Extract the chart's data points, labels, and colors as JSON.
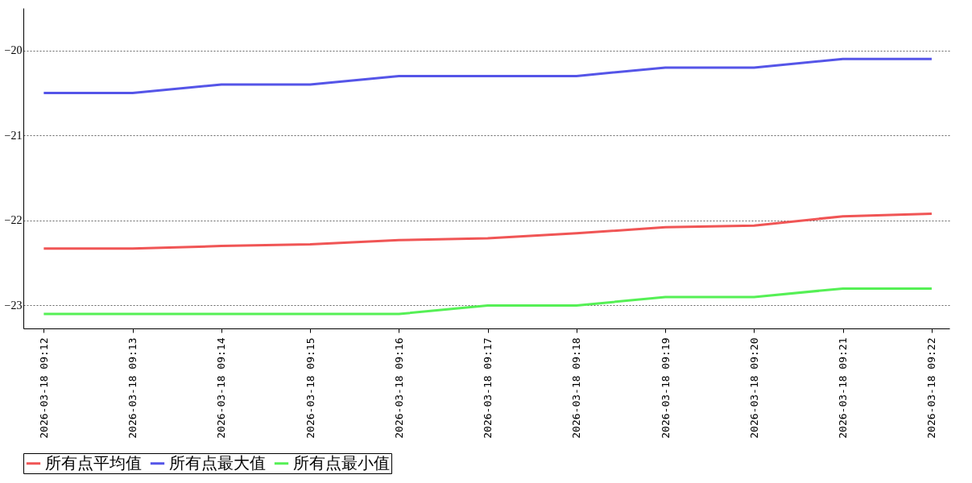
{
  "chart_data": {
    "type": "line",
    "categories": [
      "2026-03-18 09:12",
      "2026-03-18 09:13",
      "2026-03-18 09:14",
      "2026-03-18 09:15",
      "2026-03-18 09:16",
      "2026-03-18 09:17",
      "2026-03-18 09:18",
      "2026-03-18 09:19",
      "2026-03-18 09:20",
      "2026-03-18 09:21",
      "2026-03-18 09:22"
    ],
    "series": [
      {
        "name": "所有点平均值",
        "color": "#f05555",
        "values": [
          -22.33,
          -22.33,
          -22.3,
          -22.28,
          -22.23,
          -22.21,
          -22.15,
          -22.08,
          -22.06,
          -21.95,
          -21.92
        ]
      },
      {
        "name": "所有点最大值",
        "color": "#5555e8",
        "values": [
          -20.5,
          -20.5,
          -20.4,
          -20.4,
          -20.3,
          -20.3,
          -20.3,
          -20.2,
          -20.2,
          -20.1,
          -20.1
        ]
      },
      {
        "name": "所有点最小值",
        "color": "#55f055",
        "values": [
          -23.1,
          -23.1,
          -23.1,
          -23.1,
          -23.1,
          -23.0,
          -23.0,
          -22.9,
          -22.9,
          -22.8,
          -22.8
        ]
      }
    ],
    "ylim": [
      -23.27,
      -19.5
    ],
    "yticks": [
      -23,
      -22,
      -21,
      -20
    ],
    "grid": "y",
    "legend": "bottom",
    "marker": "none",
    "line_style": "solid"
  }
}
